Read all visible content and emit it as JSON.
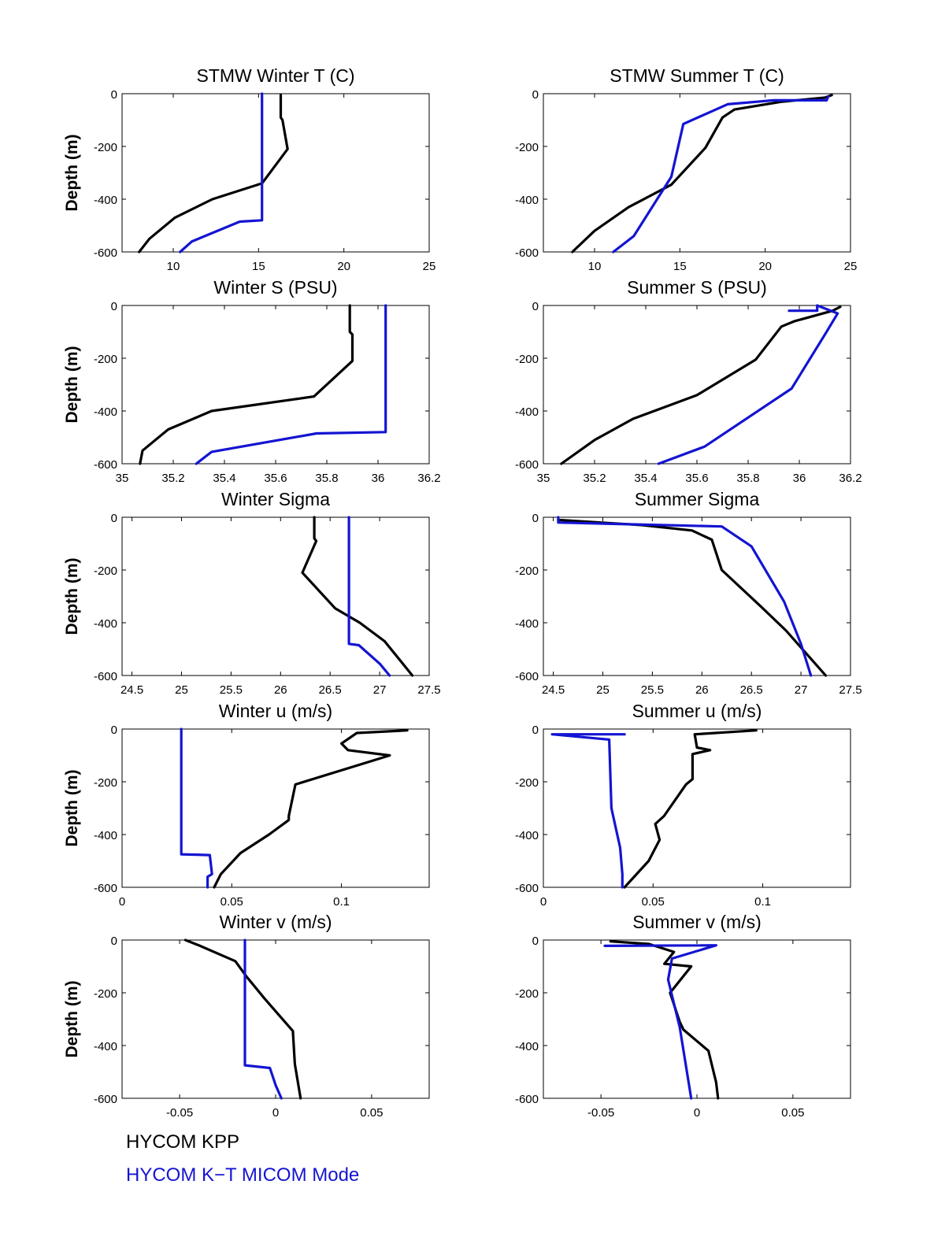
{
  "colors": {
    "kpp": "#000000",
    "kt": "#1414d2"
  },
  "legend": {
    "kpp": "HYCOM KPP",
    "kt": "HYCOM K−T MICOM Mode"
  },
  "chart_data": [
    {
      "type": "line",
      "title": "STMW Winter T (C)",
      "ylabel": "Depth (m)",
      "xlim": [
        7,
        25
      ],
      "ylim": [
        -600,
        0
      ],
      "xticks": [
        10,
        15,
        20,
        25
      ],
      "xticklabels": [
        "10",
        "15",
        "20",
        "25"
      ],
      "yticks": [
        0,
        -200,
        -400,
        -600
      ],
      "yticklabels": [
        "0",
        "-200",
        "-400",
        "-600"
      ],
      "series": [
        {
          "name": "HYCOM KPP",
          "x": [
            16.3,
            16.3,
            16.4,
            16.7,
            15.2,
            12.3,
            10.1,
            8.6,
            8.0
          ],
          "y": [
            -5,
            -90,
            -100,
            -210,
            -340,
            -400,
            -470,
            -550,
            -600
          ]
        },
        {
          "name": "HYCOM K-T MICOM Mode",
          "x": [
            15.2,
            15.2,
            15.2,
            15.2,
            13.9,
            11.1,
            10.4
          ],
          "y": [
            0,
            -200,
            -340,
            -480,
            -485,
            -560,
            -600
          ]
        }
      ]
    },
    {
      "type": "line",
      "title": "STMW Summer T (C)",
      "ylabel": "",
      "xlim": [
        7,
        25
      ],
      "ylim": [
        -600,
        0
      ],
      "xticks": [
        10,
        15,
        20,
        25
      ],
      "xticklabels": [
        "10",
        "15",
        "20",
        "25"
      ],
      "yticks": [
        0,
        -200,
        -400,
        -600
      ],
      "yticklabels": [
        "0",
        "-200",
        "-400",
        "-600"
      ],
      "series": [
        {
          "name": "HYCOM KPP",
          "x": [
            23.9,
            23.5,
            21.0,
            18.2,
            17.5,
            16.5,
            14.5,
            12.0,
            10.0,
            8.7
          ],
          "y": [
            -5,
            -15,
            -30,
            -60,
            -90,
            -205,
            -345,
            -430,
            -520,
            -600
          ]
        },
        {
          "name": "HYCOM K-T MICOM Mode",
          "x": [
            23.7,
            23.6,
            20.5,
            17.8,
            15.2,
            14.5,
            12.3,
            11.1
          ],
          "y": [
            -10,
            -25,
            -25,
            -40,
            -115,
            -315,
            -540,
            -600
          ]
        }
      ]
    },
    {
      "type": "line",
      "title": "Winter S (PSU)",
      "ylabel": "Depth (m)",
      "xlim": [
        35,
        36.2
      ],
      "ylim": [
        -600,
        0
      ],
      "xticks": [
        35,
        35.2,
        35.4,
        35.6,
        35.8,
        36,
        36.2
      ],
      "xticklabels": [
        "35",
        "35.2",
        "35.4",
        "35.6",
        "35.8",
        "36",
        "36.2"
      ],
      "yticks": [
        0,
        -200,
        -400,
        -600
      ],
      "yticklabels": [
        "0",
        "-200",
        "-400",
        "-600"
      ],
      "series": [
        {
          "name": "HYCOM KPP",
          "x": [
            35.89,
            35.89,
            35.9,
            35.9,
            35.75,
            35.35,
            35.18,
            35.08,
            35.07
          ],
          "y": [
            0,
            -100,
            -110,
            -210,
            -345,
            -400,
            -470,
            -550,
            -600
          ]
        },
        {
          "name": "HYCOM K-T MICOM Mode",
          "x": [
            36.03,
            36.03,
            36.03,
            35.76,
            35.35,
            35.29
          ],
          "y": [
            0,
            -200,
            -480,
            -485,
            -555,
            -600
          ]
        }
      ]
    },
    {
      "type": "line",
      "title": "Summer S (PSU)",
      "ylabel": "",
      "xlim": [
        35,
        36.2
      ],
      "ylim": [
        -600,
        0
      ],
      "xticks": [
        35,
        35.2,
        35.4,
        35.6,
        35.8,
        36,
        36.2
      ],
      "xticklabels": [
        "35",
        "35.2",
        "35.4",
        "35.6",
        "35.8",
        "36",
        "36.2"
      ],
      "series": [
        {
          "name": "HYCOM KPP",
          "x": [
            36.16,
            36.13,
            35.98,
            35.93,
            35.83,
            35.6,
            35.35,
            35.2,
            35.07
          ],
          "y": [
            -5,
            -20,
            -60,
            -80,
            -205,
            -340,
            -430,
            -510,
            -600
          ]
        },
        {
          "name": "HYCOM K-T MICOM Mode",
          "x": [
            35.96,
            36.07,
            36.07,
            36.15,
            36.1,
            35.97,
            35.63,
            35.45
          ],
          "y": [
            -20,
            -20,
            0,
            -30,
            -110,
            -315,
            -535,
            -600
          ]
        }
      ]
    },
    {
      "type": "line",
      "title": "Winter Sigma",
      "ylabel": "Depth (m)",
      "xlim": [
        24.4,
        27.5
      ],
      "ylim": [
        -600,
        0
      ],
      "xticks": [
        24.5,
        25,
        25.5,
        26,
        26.5,
        27,
        27.5
      ],
      "xticklabels": [
        "24.5",
        "25",
        "25.5",
        "26",
        "26.5",
        "27",
        "27.5"
      ],
      "yticks": [
        0,
        -200,
        -400,
        -600
      ],
      "yticklabels": [
        "0",
        "-200",
        "-400",
        "-600"
      ],
      "series": [
        {
          "name": "HYCOM KPP",
          "x": [
            26.34,
            26.34,
            26.36,
            26.22,
            26.55,
            26.8,
            27.05,
            27.33
          ],
          "y": [
            0,
            -80,
            -90,
            -210,
            -345,
            -400,
            -470,
            -600
          ]
        },
        {
          "name": "HYCOM K-T MICOM Mode",
          "x": [
            26.69,
            26.69,
            26.69,
            26.79,
            27.0,
            27.1
          ],
          "y": [
            0,
            -200,
            -480,
            -485,
            -555,
            -600
          ]
        }
      ]
    },
    {
      "type": "line",
      "title": "Summer Sigma",
      "ylabel": "",
      "xlim": [
        24.4,
        27.5
      ],
      "ylim": [
        -600,
        0
      ],
      "xticks": [
        24.5,
        25,
        25.5,
        26,
        26.5,
        27,
        27.5
      ],
      "xticklabels": [
        "24.5",
        "25",
        "25.5",
        "26",
        "26.5",
        "27",
        "27.5"
      ],
      "series": [
        {
          "name": "HYCOM KPP",
          "x": [
            24.55,
            25.4,
            25.9,
            26.1,
            26.2,
            26.6,
            26.85,
            27.25
          ],
          "y": [
            -10,
            -30,
            -50,
            -85,
            -200,
            -340,
            -430,
            -600
          ]
        },
        {
          "name": "HYCOM K-T MICOM Mode",
          "x": [
            24.55,
            24.55,
            26.2,
            26.5,
            26.83,
            27.0,
            27.1
          ],
          "y": [
            0,
            -20,
            -35,
            -110,
            -320,
            -480,
            -600
          ]
        }
      ]
    },
    {
      "type": "line",
      "title": "Winter u (m/s)",
      "ylabel": "Depth (m)",
      "xlim": [
        0,
        0.14
      ],
      "ylim": [
        -600,
        0
      ],
      "xticks": [
        0,
        0.05,
        0.1
      ],
      "xticklabels": [
        "0",
        "0.05",
        "0.1"
      ],
      "yticks": [
        0,
        -200,
        -400,
        -600
      ],
      "yticklabels": [
        "0",
        "-200",
        "-400",
        "-600"
      ],
      "series": [
        {
          "name": "HYCOM KPP",
          "x": [
            0.13,
            0.107,
            0.1,
            0.103,
            0.122,
            0.079,
            0.076,
            0.076,
            0.067,
            0.054,
            0.045,
            0.042
          ],
          "y": [
            -5,
            -15,
            -55,
            -80,
            -100,
            -210,
            -330,
            -345,
            -400,
            -470,
            -550,
            -600
          ]
        },
        {
          "name": "HYCOM K-T MICOM Mode",
          "x": [
            0.027,
            0.027,
            0.027,
            0.04,
            0.041,
            0.039,
            0.039
          ],
          "y": [
            0,
            -200,
            -475,
            -478,
            -550,
            -560,
            -600
          ]
        }
      ]
    },
    {
      "type": "line",
      "title": "Summer u (m/s)",
      "ylabel": "",
      "xlim": [
        0,
        0.14
      ],
      "ylim": [
        -600,
        0
      ],
      "xticks": [
        0,
        0.05,
        0.1
      ],
      "xticklabels": [
        "0",
        "0.05",
        "0.1"
      ],
      "series": [
        {
          "name": "HYCOM KPP",
          "x": [
            0.097,
            0.069,
            0.07,
            0.076,
            0.068,
            0.068,
            0.065,
            0.055,
            0.051,
            0.053,
            0.048,
            0.037
          ],
          "y": [
            -5,
            -20,
            -70,
            -80,
            -95,
            -190,
            -210,
            -330,
            -360,
            -420,
            -500,
            -600
          ]
        },
        {
          "name": "HYCOM K-T MICOM Mode",
          "x": [
            0.036,
            0.036,
            0.035,
            0.031,
            0.03,
            0.004,
            0.037
          ],
          "y": [
            -600,
            -550,
            -450,
            -300,
            -40,
            -20,
            -20
          ]
        }
      ]
    },
    {
      "type": "line",
      "title": "Winter v (m/s)",
      "ylabel": "Depth (m)",
      "xlim": [
        -0.08,
        0.08
      ],
      "ylim": [
        -600,
        0
      ],
      "xticks": [
        -0.05,
        0,
        0.05
      ],
      "xticklabels": [
        "-0.05",
        "0",
        "0.05"
      ],
      "yticks": [
        0,
        -200,
        -400,
        -600
      ],
      "yticklabels": [
        "0",
        "-200",
        "-400",
        "-600"
      ],
      "series": [
        {
          "name": "HYCOM KPP",
          "x": [
            -0.047,
            -0.04,
            -0.021,
            -0.015,
            -0.006,
            0.009,
            0.01,
            0.013
          ],
          "y": [
            0,
            -20,
            -80,
            -140,
            -220,
            -345,
            -470,
            -600
          ]
        },
        {
          "name": "HYCOM K-T MICOM Mode",
          "x": [
            -0.016,
            -0.016,
            -0.016,
            -0.003,
            0.0,
            0.003
          ],
          "y": [
            0,
            -200,
            -475,
            -485,
            -550,
            -600
          ]
        }
      ]
    },
    {
      "type": "line",
      "title": "Summer v (m/s)",
      "ylabel": "",
      "xlim": [
        -0.08,
        0.08
      ],
      "ylim": [
        -600,
        0
      ],
      "xticks": [
        -0.05,
        0,
        0.05
      ],
      "xticklabels": [
        "-0.05",
        "0",
        "0.05"
      ],
      "series": [
        {
          "name": "HYCOM KPP",
          "x": [
            -0.045,
            -0.025,
            -0.012,
            -0.017,
            -0.003,
            -0.014,
            -0.009,
            -0.007,
            0.006,
            0.01,
            0.011
          ],
          "y": [
            -5,
            -15,
            -45,
            -90,
            -100,
            -200,
            -310,
            -340,
            -420,
            -540,
            -600
          ]
        },
        {
          "name": "HYCOM K-T MICOM Mode",
          "x": [
            -0.048,
            0.01,
            -0.013,
            -0.015,
            -0.009,
            -0.003
          ],
          "y": [
            -22,
            -20,
            -70,
            -150,
            -330,
            -600
          ]
        }
      ]
    }
  ]
}
